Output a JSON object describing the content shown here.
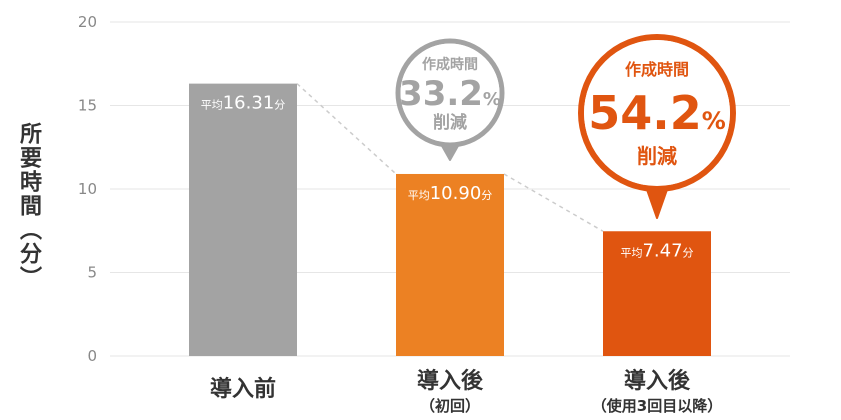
{
  "chart_data": {
    "type": "bar",
    "ylabel": "所要時間（分）",
    "ylim": [
      0,
      20
    ],
    "yticks": [
      0,
      5,
      10,
      15,
      20
    ],
    "grid": true,
    "categories": [
      {
        "label": "導入前",
        "sublabel": ""
      },
      {
        "label": "導入後",
        "sublabel": "（初回）"
      },
      {
        "label": "導入後",
        "sublabel": "（使用3回目以降）"
      }
    ],
    "values": [
      16.31,
      10.9,
      7.47
    ],
    "data_labels": [
      {
        "prefix": "平均",
        "value": "16.31",
        "unit": "分"
      },
      {
        "prefix": "平均",
        "value": "10.90",
        "unit": "分"
      },
      {
        "prefix": "平均",
        "value": "7.47",
        "unit": "分"
      }
    ],
    "colors": [
      "#a3a3a3",
      "#ec8123",
      "#e05510"
    ],
    "callouts": [
      {
        "top": "作成時間",
        "value": "33.2",
        "unit": "%",
        "bottom": "削減",
        "color": "#a3a3a3"
      },
      {
        "top": "作成時間",
        "value": "54.2",
        "unit": "%",
        "bottom": "削減",
        "color": "#e05510"
      }
    ]
  }
}
